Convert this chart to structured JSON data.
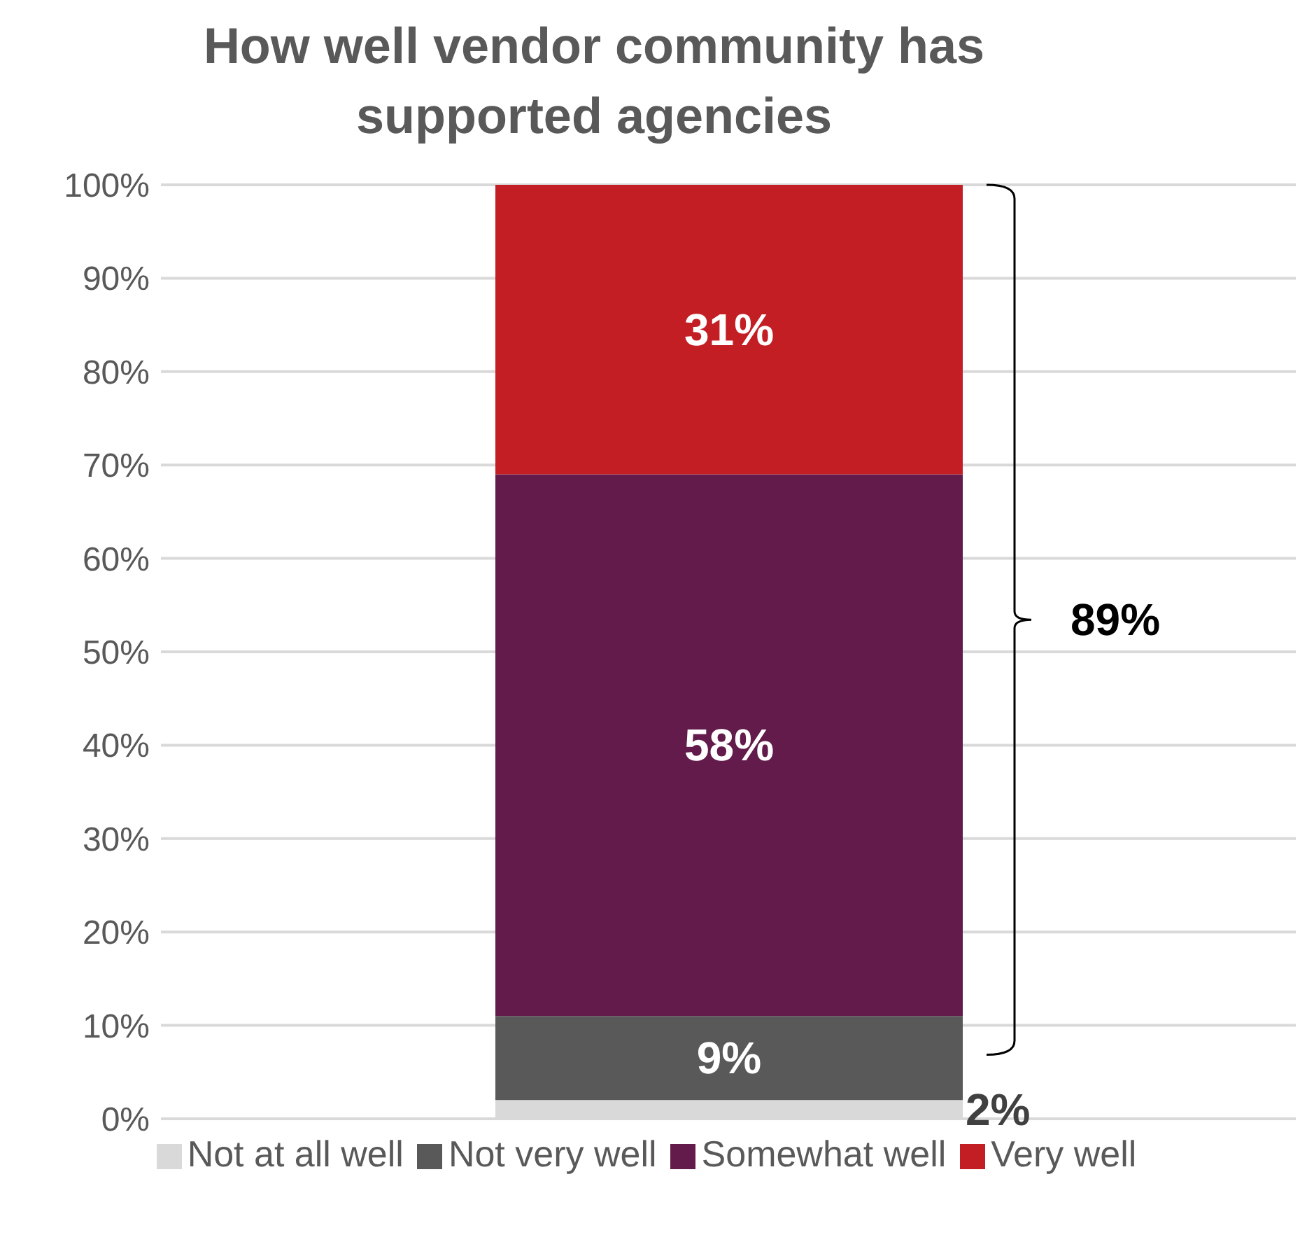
{
  "chart_data": {
    "type": "bar",
    "title": "How well vendor community has supported agencies",
    "categories": [
      null
    ],
    "stacked": true,
    "series": [
      {
        "name": "Not at all well",
        "color": "#d9d9d9",
        "values": [
          2
        ],
        "value_labels": [
          "2%"
        ]
      },
      {
        "name": "Not very well",
        "color": "#595959",
        "values": [
          9
        ],
        "value_labels": [
          "9%"
        ]
      },
      {
        "name": "Somewhat well",
        "color": "#621b4b",
        "values": [
          58
        ],
        "value_labels": [
          "58%"
        ]
      },
      {
        "name": "Very well",
        "color": "#c41e25",
        "values": [
          31
        ],
        "value_labels": [
          "31%"
        ]
      }
    ],
    "ylim": [
      0,
      100
    ],
    "yticks": [
      {
        "value": 0,
        "label": "0%"
      },
      {
        "value": 10,
        "label": "10%"
      },
      {
        "value": 20,
        "label": "20%"
      },
      {
        "value": 30,
        "label": "30%"
      },
      {
        "value": 40,
        "label": "40%"
      },
      {
        "value": 50,
        "label": "50%"
      },
      {
        "value": 60,
        "label": "60%"
      },
      {
        "value": 70,
        "label": "70%"
      },
      {
        "value": 80,
        "label": "80%"
      },
      {
        "value": 90,
        "label": "90%"
      },
      {
        "value": 100,
        "label": "100%"
      }
    ],
    "grid": "y",
    "legend": "bottom",
    "annotations": [
      "89%"
    ]
  }
}
